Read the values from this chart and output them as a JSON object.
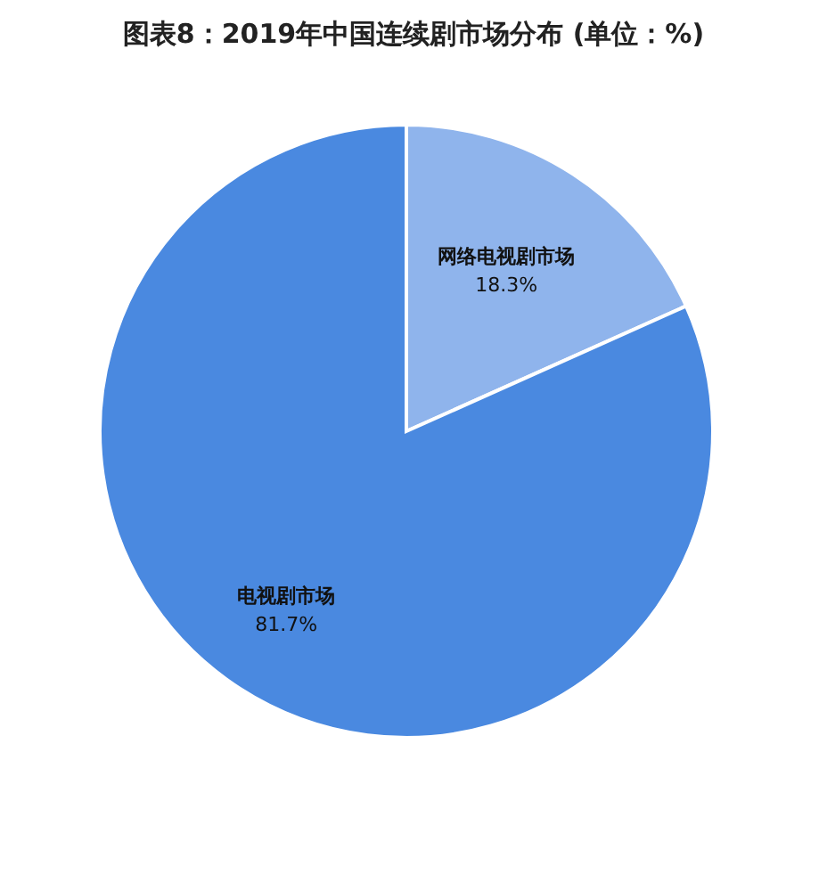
{
  "chart_data": {
    "type": "pie",
    "title": "图表8：2019年中国连续剧市场分布 (单位：%)",
    "categories": [
      "网络电视剧市场",
      "电视剧市场"
    ],
    "values": [
      18.3,
      81.7
    ],
    "colors": [
      "#8fb4ec",
      "#4a89e0"
    ],
    "value_labels": [
      "18.3%",
      "81.7%"
    ]
  }
}
